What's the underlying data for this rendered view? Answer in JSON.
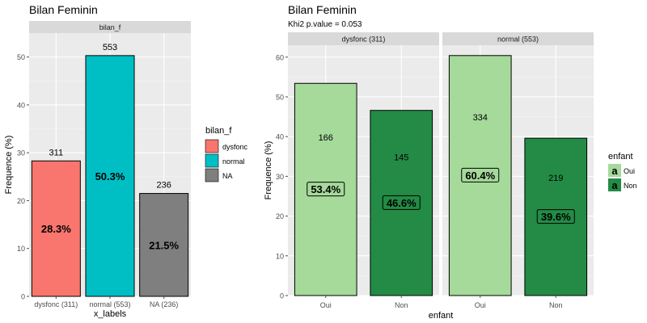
{
  "chart_data": [
    {
      "type": "bar",
      "title": "Bilan Feminin",
      "facet_label": "bilan_f",
      "xlabel": "x_labels",
      "ylabel": "Frequence (%)",
      "ylim": [
        0,
        55
      ],
      "yticks": [
        0,
        10,
        20,
        30,
        40,
        50
      ],
      "grid": true,
      "categories": [
        "dysfonc (311)",
        "normal (553)",
        "NA (236)"
      ],
      "values": [
        28.3,
        50.3,
        21.5
      ],
      "counts": [
        "311",
        "553",
        "236"
      ],
      "percent_labels": [
        "28.3%",
        "50.3%",
        "21.5%"
      ],
      "colors": [
        "#f8766d",
        "#00bfc4",
        "#7f7f7f"
      ],
      "legend": {
        "title": "bilan_f",
        "position": "right",
        "items": [
          {
            "label": "dysfonc",
            "color": "#f8766d"
          },
          {
            "label": "normal",
            "color": "#00bfc4"
          },
          {
            "label": "NA",
            "color": "#7f7f7f"
          }
        ]
      }
    },
    {
      "type": "bar",
      "title": "Bilan Feminin",
      "subtitle": "Khi2 p.value = 0.053",
      "xlabel": "enfant",
      "ylabel": "Frequence (%)",
      "ylim": [
        0,
        63
      ],
      "yticks": [
        0,
        10,
        20,
        30,
        40,
        50,
        60
      ],
      "grid": true,
      "categories": [
        "Oui",
        "Non"
      ],
      "facets": [
        {
          "label": "dysfonc (311)",
          "values": [
            53.4,
            46.6
          ],
          "counts": [
            "166",
            "145"
          ],
          "percent_labels": [
            "53.4%",
            "46.6%"
          ]
        },
        {
          "label": "normal (553)",
          "values": [
            60.4,
            39.6
          ],
          "counts": [
            "334",
            "219"
          ],
          "percent_labels": [
            "60.4%",
            "39.6%"
          ]
        }
      ],
      "colors": [
        "#a5da9a",
        "#238b45"
      ],
      "legend": {
        "title": "enfant",
        "position": "right",
        "key_glyph": "a",
        "items": [
          {
            "label": "Oui",
            "color": "#a5da9a"
          },
          {
            "label": "Non",
            "color": "#238b45"
          }
        ]
      }
    }
  ]
}
